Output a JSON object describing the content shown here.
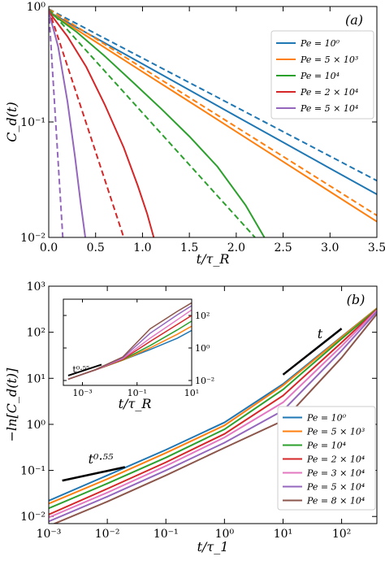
{
  "chart_data": [
    {
      "type": "line",
      "panel_label": "(a)",
      "xlabel": "t/τ_R",
      "ylabel": "C_d(t)",
      "xscale": "linear",
      "yscale": "log",
      "xlim": [
        0,
        3.5
      ],
      "ylim": [
        0.01,
        1
      ],
      "xticks": [
        0,
        0.5,
        1,
        1.5,
        2,
        2.5,
        3,
        3.5
      ],
      "xtick_labels": [
        "0.0",
        "0.5",
        "1.0",
        "1.5",
        "2.0",
        "2.5",
        "3.0",
        "3.5"
      ],
      "yticks": [
        0.01,
        0.1,
        1
      ],
      "ytick_labels": [
        "10⁻²",
        "10⁻¹",
        "10⁰"
      ],
      "legend_position": "upper right",
      "series": [
        {
          "name": "Pe = 10⁰",
          "color": "#1f77b4",
          "style": "solid",
          "x": [
            0,
            0.5,
            1,
            1.5,
            2,
            2.5,
            3,
            3.5
          ],
          "y": [
            0.9,
            0.535,
            0.318,
            0.189,
            0.112,
            0.0667,
            0.0396,
            0.0236
          ]
        },
        {
          "name": "Pe = 5 × 10³",
          "color": "#ff7f0e",
          "style": "solid",
          "x": [
            0,
            0.5,
            1,
            1.5,
            2,
            2.5,
            3,
            3.5
          ],
          "y": [
            0.9,
            0.495,
            0.272,
            0.15,
            0.0824,
            0.0453,
            0.0249,
            0.0137
          ]
        },
        {
          "name": "Pe = 10⁴",
          "color": "#2ca02c",
          "style": "solid",
          "x": [
            0,
            0.3,
            0.6,
            0.9,
            1.2,
            1.5,
            1.8,
            2.1,
            2.3
          ],
          "y": [
            0.9,
            0.6,
            0.37,
            0.22,
            0.13,
            0.075,
            0.041,
            0.019,
            0.01
          ]
        },
        {
          "name": "Pe = 2 × 10⁴",
          "color": "#d62728",
          "style": "solid",
          "x": [
            0,
            0.2,
            0.4,
            0.6,
            0.8,
            0.95,
            1.05,
            1.12
          ],
          "y": [
            0.9,
            0.55,
            0.3,
            0.14,
            0.06,
            0.028,
            0.016,
            0.01
          ]
        },
        {
          "name": "Pe = 5 × 10⁴",
          "color": "#9467bd",
          "style": "solid",
          "x": [
            0,
            0.1,
            0.2,
            0.28,
            0.34,
            0.39
          ],
          "y": [
            0.9,
            0.45,
            0.15,
            0.05,
            0.02,
            0.01
          ]
        },
        {
          "name": "",
          "color": "#1f77b4",
          "style": "dashed",
          "x": [
            0,
            3.5
          ],
          "y": [
            0.95,
            0.031
          ]
        },
        {
          "name": "",
          "color": "#ff7f0e",
          "style": "dashed",
          "x": [
            0,
            3.5
          ],
          "y": [
            0.95,
            0.0155
          ]
        },
        {
          "name": "",
          "color": "#2ca02c",
          "style": "dashed",
          "x": [
            0,
            2.2
          ],
          "y": [
            0.95,
            0.01
          ]
        },
        {
          "name": "",
          "color": "#d62728",
          "style": "dashed",
          "x": [
            0,
            0.8
          ],
          "y": [
            0.95,
            0.01
          ]
        },
        {
          "name": "",
          "color": "#9467bd",
          "style": "dashed",
          "x": [
            0,
            0.15
          ],
          "y": [
            0.95,
            0.01
          ]
        }
      ]
    },
    {
      "type": "line",
      "panel_label": "(b)",
      "xlabel": "t/τ_1",
      "ylabel": "−ln[C_d(t)]",
      "xscale": "log",
      "yscale": "log",
      "xlim": [
        0.001,
        400
      ],
      "ylim": [
        0.007,
        1000
      ],
      "xticks": [
        0.001,
        0.01,
        0.1,
        1,
        10,
        100
      ],
      "xtick_labels": [
        "10⁻³",
        "10⁻²",
        "10⁻¹",
        "10⁰",
        "10¹",
        "10²"
      ],
      "yticks": [
        0.01,
        0.1,
        1,
        10,
        100,
        1000
      ],
      "ytick_labels": [
        "10⁻²",
        "10⁻¹",
        "10⁰",
        "10¹",
        "10²",
        "10³"
      ],
      "legend_position": "lower right",
      "annotations": [
        {
          "text": "t",
          "x": 0.0017,
          "y": 0.06,
          "x2": 0.02,
          "y2": 0.118,
          "label": "t^0.55"
        },
        {
          "text": "t",
          "x": 10,
          "y": 12,
          "x2": 100,
          "y2": 120,
          "label": "t"
        }
      ],
      "series": [
        {
          "name": "Pe = 10⁰",
          "color": "#1f77b4",
          "x": [
            0.001,
            0.01,
            0.1,
            1,
            10,
            100,
            400
          ],
          "y": [
            0.022,
            0.078,
            0.28,
            1.1,
            7.5,
            80,
            330
          ]
        },
        {
          "name": "Pe = 5 × 10³",
          "color": "#ff7f0e",
          "x": [
            0.001,
            0.01,
            0.1,
            1,
            10,
            100,
            400
          ],
          "y": [
            0.019,
            0.065,
            0.24,
            0.95,
            7,
            78,
            330
          ]
        },
        {
          "name": "Pe = 10⁴",
          "color": "#2ca02c",
          "x": [
            0.001,
            0.01,
            0.1,
            1,
            10,
            100,
            400
          ],
          "y": [
            0.015,
            0.052,
            0.19,
            0.78,
            5.7,
            72,
            320
          ]
        },
        {
          "name": "Pe = 2 × 10⁴",
          "color": "#d62728",
          "x": [
            0.001,
            0.01,
            0.1,
            1,
            10,
            100,
            400
          ],
          "y": [
            0.011,
            0.04,
            0.15,
            0.62,
            4.2,
            60,
            310
          ]
        },
        {
          "name": "Pe = 3 × 10⁴",
          "color": "#e377c2",
          "x": [
            0.001,
            0.01,
            0.1,
            1,
            10,
            100,
            400
          ],
          "y": [
            0.0095,
            0.033,
            0.125,
            0.52,
            3,
            50,
            300
          ]
        },
        {
          "name": "Pe = 5 × 10⁴",
          "color": "#9467bd",
          "x": [
            0.001,
            0.01,
            0.1,
            1,
            10,
            100,
            400
          ],
          "y": [
            0.0078,
            0.027,
            0.1,
            0.4,
            2,
            40,
            280
          ]
        },
        {
          "name": "Pe = 8 × 10⁴",
          "color": "#8c564b",
          "x": [
            0.001,
            0.01,
            0.1,
            1,
            10,
            100,
            400
          ],
          "y": [
            0.0062,
            0.021,
            0.078,
            0.31,
            1.2,
            28,
            250
          ]
        }
      ]
    },
    {
      "type": "line",
      "inset_of": "(b)",
      "xlabel": "t/τ_R",
      "xscale": "log",
      "yscale": "log",
      "xlim": [
        0.0002,
        10
      ],
      "ylim": [
        0.005,
        1000
      ],
      "xticks": [
        0.001,
        0.1,
        10
      ],
      "xtick_labels": [
        "10⁻³",
        "10⁻¹",
        "10¹"
      ],
      "yticks": [
        0.01,
        1,
        100
      ],
      "ytick_labels": [
        "10⁻²",
        "10⁰",
        "10²"
      ],
      "annotation": "t^0.55",
      "series": [
        {
          "color": "#1f77b4",
          "x": [
            0.0003,
            0.003,
            0.03,
            0.3,
            3,
            10
          ],
          "y": [
            0.012,
            0.045,
            0.18,
            0.8,
            4,
            12
          ]
        },
        {
          "color": "#ff7f0e",
          "x": [
            0.0003,
            0.003,
            0.03,
            0.3,
            3,
            10
          ],
          "y": [
            0.012,
            0.045,
            0.18,
            1.0,
            7,
            22
          ]
        },
        {
          "color": "#2ca02c",
          "x": [
            0.0003,
            0.003,
            0.03,
            0.3,
            3,
            10
          ],
          "y": [
            0.012,
            0.045,
            0.19,
            1.4,
            13,
            45
          ]
        },
        {
          "color": "#d62728",
          "x": [
            0.0003,
            0.003,
            0.03,
            0.3,
            3,
            10
          ],
          "y": [
            0.012,
            0.045,
            0.2,
            2.5,
            28,
            100
          ]
        },
        {
          "color": "#e377c2",
          "x": [
            0.0003,
            0.003,
            0.03,
            0.3,
            3,
            10
          ],
          "y": [
            0.012,
            0.046,
            0.22,
            4,
            55,
            220
          ]
        },
        {
          "color": "#9467bd",
          "x": [
            0.0003,
            0.003,
            0.03,
            0.3,
            3,
            10
          ],
          "y": [
            0.012,
            0.046,
            0.25,
            8,
            110,
            400
          ]
        },
        {
          "color": "#8c564b",
          "x": [
            0.0003,
            0.003,
            0.03,
            0.3,
            3,
            10
          ],
          "y": [
            0.012,
            0.047,
            0.28,
            15,
            180,
            600
          ]
        }
      ]
    }
  ]
}
